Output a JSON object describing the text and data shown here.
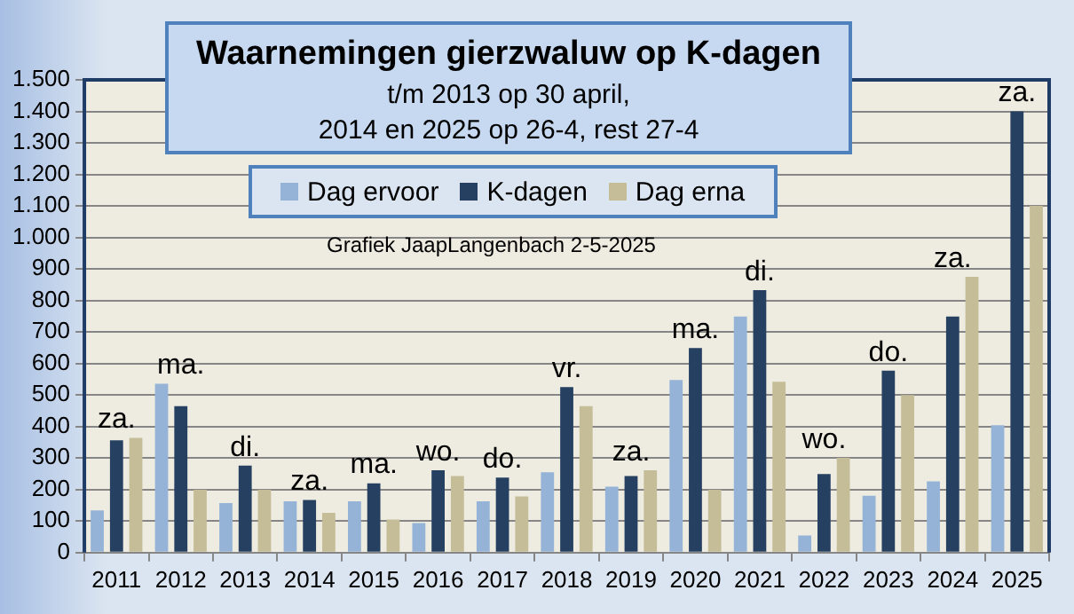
{
  "chart_data": {
    "type": "bar",
    "title": "Waarnemingen gierzwaluw op K-dagen",
    "subtitle": "t/m 2013 op 30 april,\n2014 en 2025 op 26-4, rest 27-4",
    "categories": [
      "2011",
      "2012",
      "2013",
      "2014",
      "2015",
      "2016",
      "2017",
      "2018",
      "2019",
      "2020",
      "2021",
      "2022",
      "2023",
      "2024",
      "2025"
    ],
    "series": [
      {
        "name": "Dag ervoor",
        "color": "#95b3d7",
        "values": [
          134,
          536,
          157,
          163,
          163,
          94,
          163,
          255,
          209,
          548,
          749,
          54,
          180,
          226,
          404
        ]
      },
      {
        "name": "K-dagen",
        "color": "#254061",
        "values": [
          356,
          465,
          276,
          167,
          220,
          261,
          238,
          525,
          243,
          649,
          833,
          249,
          577,
          749,
          1400
        ]
      },
      {
        "name": "Dag erna",
        "color": "#c4bd97",
        "values": [
          364,
          199,
          199,
          126,
          105,
          243,
          178,
          465,
          261,
          199,
          542,
          301,
          500,
          875,
          1100
        ]
      }
    ],
    "ylim": [
      0,
      1500
    ],
    "yticks": [
      0,
      100,
      200,
      300,
      400,
      500,
      600,
      700,
      800,
      900,
      {
        "value": 1000,
        "label": "1.000"
      },
      {
        "value": 1100,
        "label": "1.100"
      },
      {
        "value": 1200,
        "label": "1.200"
      },
      {
        "value": 1300,
        "label": "1.300"
      },
      {
        "value": 1400,
        "label": "1.400"
      },
      {
        "value": 1500,
        "label": "1.500"
      }
    ],
    "grid": "y",
    "legend": "top",
    "annotations": [
      {
        "text": "za.",
        "x": "2011",
        "y": 356
      },
      {
        "text": "ma.",
        "x": "2012",
        "y": 465
      },
      {
        "text": "di.",
        "x": "2013",
        "y": 276
      },
      {
        "text": "za.",
        "x": "2014",
        "y": 167
      },
      {
        "text": "ma.",
        "x": "2015",
        "y": 220
      },
      {
        "text": "wo.",
        "x": "2016",
        "y": 261
      },
      {
        "text": "do.",
        "x": "2017",
        "y": 238
      },
      {
        "text": "vr.",
        "x": "2018",
        "y": 525
      },
      {
        "text": "za.",
        "x": "2019",
        "y": 243
      },
      {
        "text": "ma.",
        "x": "2020",
        "y": 649
      },
      {
        "text": "di.",
        "x": "2021",
        "y": 833
      },
      {
        "text": "wo.",
        "x": "2022",
        "y": 249
      },
      {
        "text": "do.",
        "x": "2023",
        "y": 577
      },
      {
        "text": "za.",
        "x": "2024",
        "y": 749
      },
      {
        "text": "za.",
        "x": "2025",
        "y": 1400
      },
      "Grafiek JaapLangenbach 2-5-2025"
    ]
  }
}
